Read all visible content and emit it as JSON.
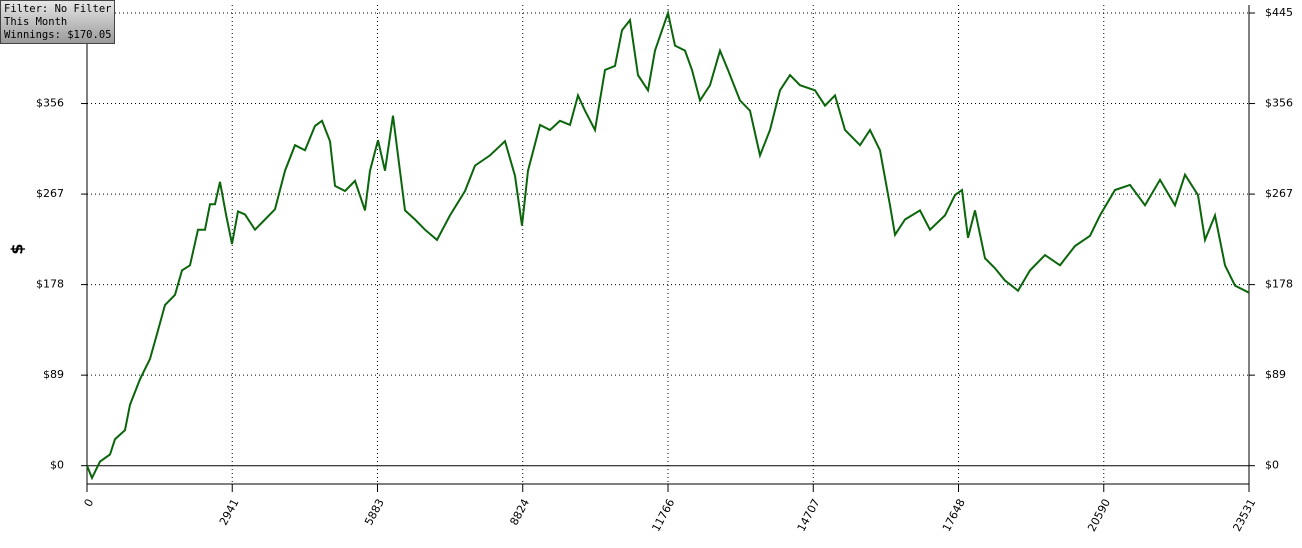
{
  "chart_data": {
    "type": "line",
    "annotations": [
      "Filter: No Filter",
      "This Month",
      "Winnings: $170.05"
    ],
    "y_label": "$",
    "color": "#0b660b",
    "grid": true,
    "xlim": [
      0,
      23531
    ],
    "xticks": [
      0,
      2941,
      5883,
      8824,
      11766,
      14707,
      17648,
      20590,
      23531
    ],
    "ylim": [
      -18,
      445
    ],
    "yticks": [
      {
        "value": 0,
        "label": "$0"
      },
      {
        "value": 89,
        "label": "$89"
      },
      {
        "value": 178,
        "label": "$178"
      },
      {
        "value": 267,
        "label": "$267"
      },
      {
        "value": 356,
        "label": "$356"
      },
      {
        "value": 445,
        "label": "$445"
      }
    ],
    "x": [
      0,
      101,
      263,
      466,
      567,
      770,
      871,
      1073,
      1276,
      1438,
      1580,
      1782,
      1924,
      2086,
      2248,
      2390,
      2491,
      2592,
      2693,
      2815,
      2936,
      3058,
      3200,
      3402,
      3605,
      3807,
      4010,
      4212,
      4415,
      4617,
      4759,
      4921,
      5022,
      5225,
      5427,
      5630,
      5731,
      5893,
      6035,
      6197,
      6298,
      6440,
      6642,
      6845,
      7088,
      7351,
      7655,
      7857,
      8161,
      8465,
      8667,
      8809,
      8930,
      9173,
      9376,
      9578,
      9781,
      9943,
      10085,
      10287,
      10490,
      10692,
      10834,
      10996,
      11158,
      11360,
      11502,
      11766,
      11907,
      12110,
      12251,
      12413,
      12616,
      12818,
      12980,
      13223,
      13426,
      13628,
      13831,
      14033,
      14236,
      14438,
      14742,
      14945,
      15147,
      15350,
      15653,
      15856,
      16058,
      16261,
      16362,
      16565,
      16868,
      17071,
      17375,
      17577,
      17719,
      17840,
      17982,
      18185,
      18387,
      18590,
      18853,
      19096,
      19400,
      19703,
      20007,
      20311,
      20513,
      20817,
      21121,
      21425,
      21728,
      22032,
      22235,
      22498,
      22640,
      22842,
      23045,
      23247,
      23531
    ],
    "values": [
      0,
      -12,
      4,
      11,
      26,
      35,
      60,
      85,
      105,
      133,
      158,
      168,
      192,
      197,
      232,
      232,
      257,
      257,
      279,
      247,
      218,
      250,
      247,
      232,
      242,
      252,
      290,
      315,
      310,
      334,
      339,
      319,
      275,
      270,
      280,
      251,
      290,
      320,
      290,
      344,
      305,
      251,
      242,
      232,
      222,
      246,
      270,
      295,
      305,
      319,
      285,
      236,
      290,
      335,
      330,
      339,
      335,
      364,
      349,
      330,
      389,
      393,
      428,
      438,
      384,
      369,
      408,
      445,
      413,
      408,
      389,
      359,
      374,
      408,
      389,
      359,
      349,
      305,
      330,
      369,
      384,
      374,
      369,
      354,
      364,
      330,
      315,
      330,
      310,
      256,
      227,
      242,
      251,
      232,
      246,
      266,
      271,
      224,
      251,
      204,
      194,
      182,
      172,
      192,
      207,
      197,
      216,
      226,
      246,
      271,
      276,
      256,
      281,
      256,
      286,
      266,
      222,
      246,
      197,
      177,
      170.05
    ]
  }
}
